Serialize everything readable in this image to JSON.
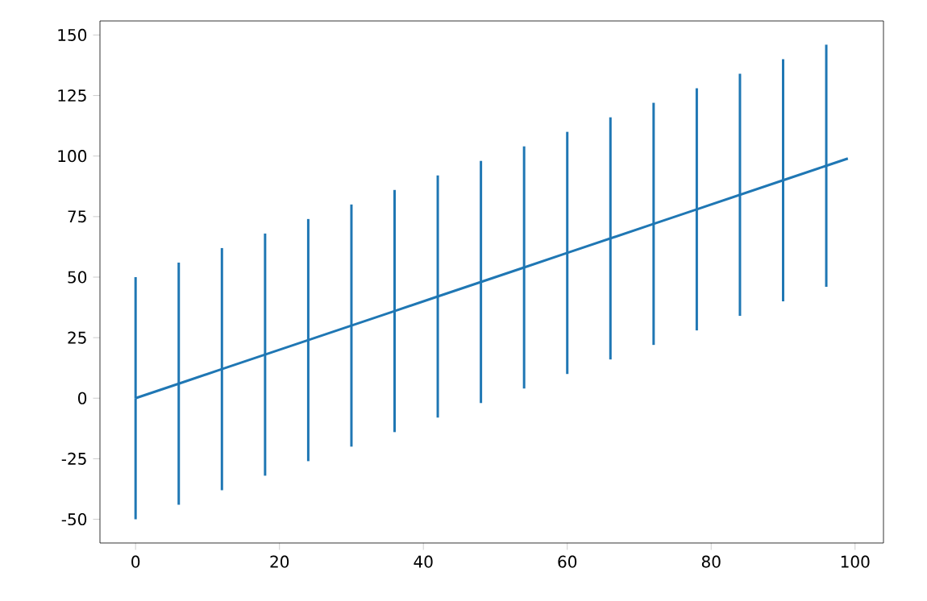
{
  "chart_data": {
    "type": "line",
    "marker": "none",
    "line_style": "solid",
    "grid": false,
    "x": [
      0,
      6,
      12,
      18,
      24,
      30,
      36,
      42,
      48,
      54,
      60,
      66,
      72,
      78,
      84,
      90,
      96,
      99
    ],
    "series": [
      {
        "color": "#1f77b4",
        "values": [
          0,
          6,
          12,
          18,
          24,
          30,
          36,
          42,
          48,
          54,
          60,
          66,
          72,
          78,
          84,
          90,
          96,
          99
        ],
        "errors": [
          50,
          50,
          50,
          50,
          50,
          50,
          50,
          50,
          50,
          50,
          50,
          50,
          50,
          50,
          50,
          50,
          50,
          null
        ]
      }
    ],
    "xlim": [
      -4.95,
      103.95
    ],
    "ylim": [
      -59.8,
      155.8
    ],
    "xticks": [
      0,
      20,
      40,
      60,
      80,
      100
    ],
    "yticks": [
      -50,
      -25,
      0,
      25,
      50,
      75,
      100,
      125,
      150
    ]
  }
}
